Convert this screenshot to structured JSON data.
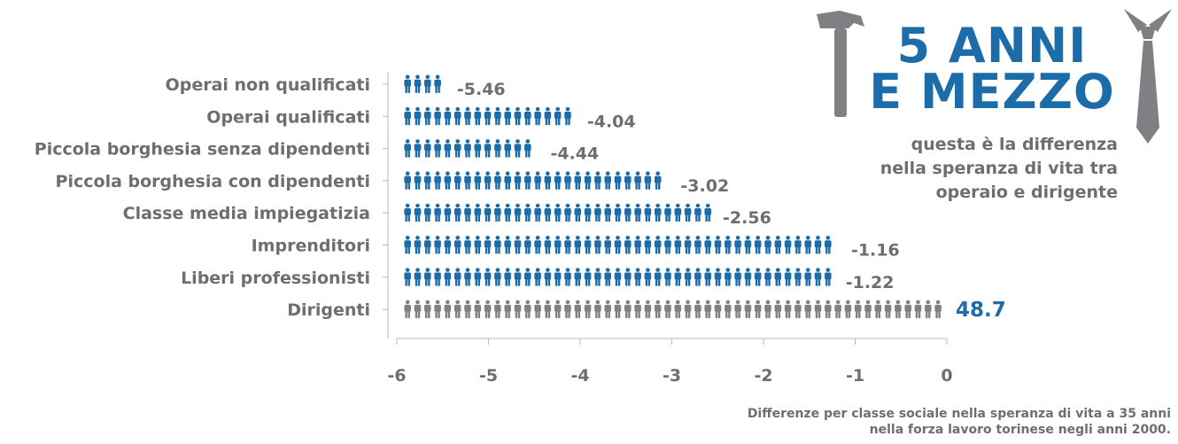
{
  "chart_data": {
    "type": "bar",
    "orientation": "horizontal",
    "categories": [
      "Operai non qualificati",
      "Operai qualificati",
      "Piccola borghesia senza dipendenti",
      "Piccola borghesia con dipendenti",
      "Classe media impiegatizia",
      "Imprenditori",
      "Liberi professionisti",
      "Dirigenti"
    ],
    "values": [
      -5.46,
      -4.04,
      -4.44,
      -3.02,
      -2.56,
      -1.16,
      -1.22,
      48.7
    ],
    "value_labels": [
      "-5.46",
      "-4.04",
      "-4.44",
      "-3.02",
      "-2.56",
      "-1.16",
      "-1.22",
      "48.7"
    ],
    "highlight_category": "Dirigenti",
    "xlim": [
      -6,
      0
    ],
    "xticks": [
      "-6",
      "-5",
      "-4",
      "-3",
      "-2",
      "-1",
      "0"
    ],
    "mark": "pictogram (stacked person icons)",
    "grid": false,
    "colors": {
      "bar": "#1b6ca8",
      "highlight": "#7f8083",
      "text": "#6d6e71",
      "accent_text": "#1b6ca8"
    }
  },
  "headline": {
    "line1": "5 ANNI",
    "line2": "E MEZZO"
  },
  "subtitle": [
    "questa è la  differenza",
    "nella speranza di vita tra",
    "operaio e dirigente"
  ],
  "source_note": [
    "Differenze per classe sociale nella speranza di vita a 35 anni",
    "nella forza lavoro torinese negli anni 2000."
  ],
  "decorations": {
    "left": "hammer-icon",
    "right": "necktie-icon"
  }
}
